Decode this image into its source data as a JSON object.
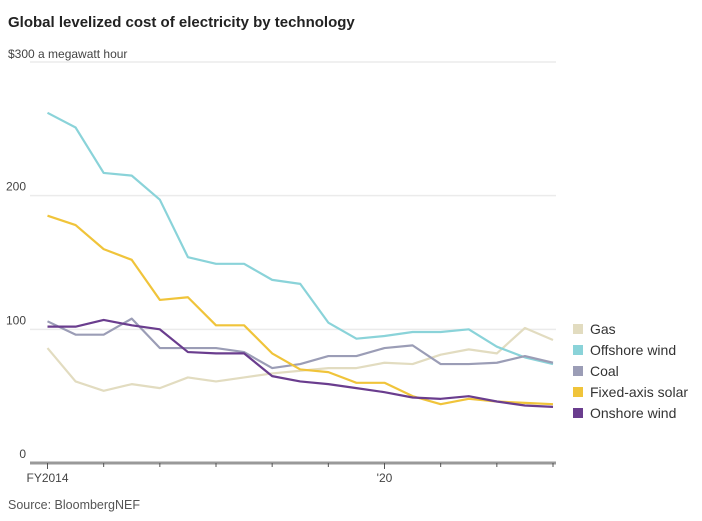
{
  "chart_data": {
    "type": "line",
    "title": "Global levelized cost of electricity by technology",
    "ylabel": "$300 a megawatt hour",
    "source": "Source: BloombergNEF",
    "ylim": [
      0,
      300
    ],
    "yticks": [
      0,
      100,
      200
    ],
    "ytick_labels": [
      "0",
      "100",
      "200"
    ],
    "xlim": [
      2014,
      2023
    ],
    "xtick_labels": [
      {
        "x": 2014,
        "label": "FY2014"
      },
      {
        "x": 2020,
        "label": "'20"
      }
    ],
    "x": [
      2014,
      2014.5,
      2015,
      2015.5,
      2016,
      2016.5,
      2017,
      2017.5,
      2018,
      2018.5,
      2019,
      2019.5,
      2020,
      2020.5,
      2021,
      2021.5,
      2022,
      2022.5,
      2023
    ],
    "grid": true,
    "legend": "right",
    "series": [
      {
        "name": "Gas",
        "color": "#e2dcc0",
        "values": [
          86,
          61,
          54,
          59,
          56,
          64,
          61,
          64,
          67,
          69,
          71,
          71,
          75,
          74,
          81,
          85,
          82,
          101,
          92
        ]
      },
      {
        "name": "Offshore wind",
        "color": "#8ad3d9",
        "values": [
          262,
          251,
          217,
          215,
          197,
          154,
          149,
          149,
          137,
          134,
          105,
          93,
          95,
          98,
          98,
          100,
          87,
          79,
          74
        ]
      },
      {
        "name": "Coal",
        "color": "#9b9db6",
        "values": [
          106,
          96,
          96,
          108,
          86,
          86,
          86,
          83,
          71,
          74,
          80,
          80,
          86,
          88,
          74,
          74,
          75,
          80,
          75
        ]
      },
      {
        "name": "Fixed-axis solar",
        "color": "#f0c43a",
        "values": [
          185,
          178,
          160,
          152,
          122,
          124,
          103,
          103,
          82,
          70,
          68,
          60,
          60,
          50,
          44,
          48,
          46,
          45,
          44
        ]
      },
      {
        "name": "Onshore wind",
        "color": "#6a3d8e",
        "values": [
          102,
          102,
          107,
          103,
          100,
          83,
          82,
          82,
          65,
          61,
          59,
          56,
          53,
          49,
          48,
          50,
          46,
          43,
          42
        ]
      }
    ]
  }
}
